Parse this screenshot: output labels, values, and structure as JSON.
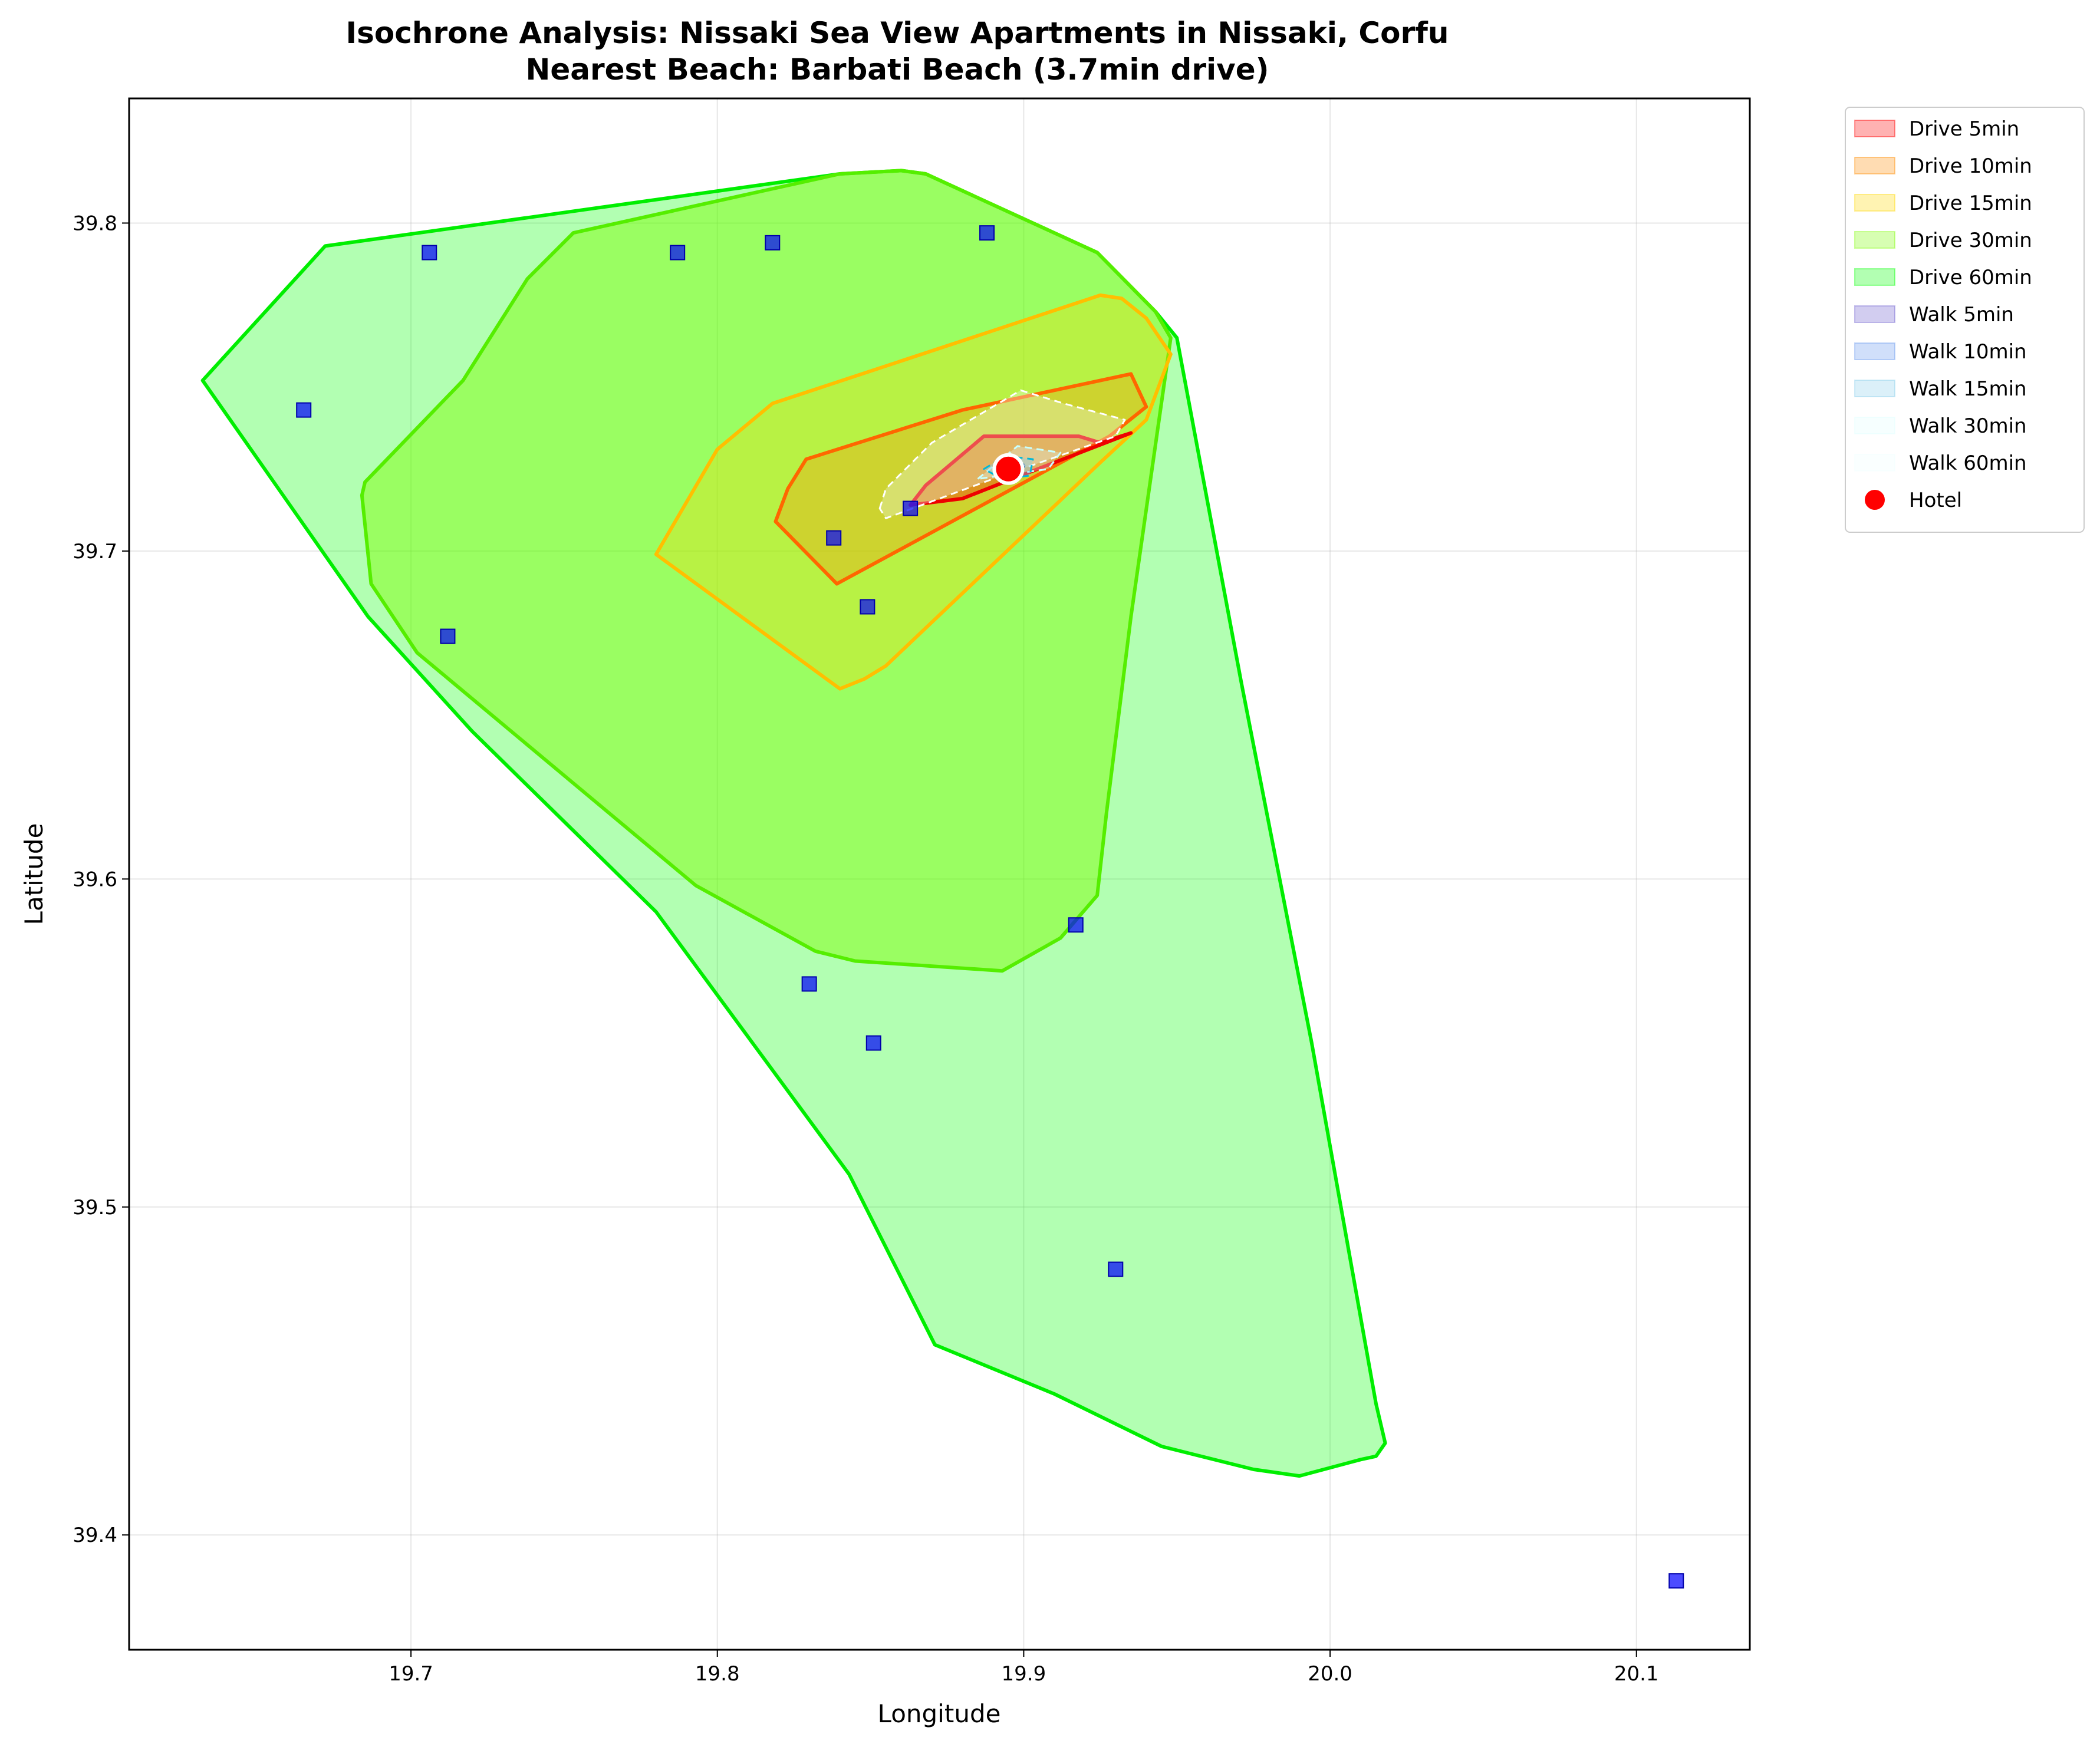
{
  "chart_data": {
    "type": "area",
    "title": "Isochrone Analysis: Nissaki Sea View Apartments in Nissaki, Corfu",
    "subtitle": "Nearest Beach: Barbati Beach (3.7min drive)",
    "xlabel": "Longitude",
    "ylabel": "Latitude",
    "xlim": [
      19.608,
      20.137
    ],
    "ylim": [
      39.365,
      39.838
    ],
    "xticks": [
      19.7,
      19.8,
      19.9,
      20.0,
      20.1
    ],
    "xtick_labels": [
      "19.7",
      "19.8",
      "19.9",
      "20.0",
      "20.1"
    ],
    "yticks": [
      39.4,
      39.5,
      39.6,
      39.7,
      39.8
    ],
    "ytick_labels": [
      "39.4",
      "39.5",
      "39.6",
      "39.7",
      "39.8"
    ],
    "grid": true,
    "legend_position": "outside-top-right",
    "drive_isochrones": [
      {
        "name": "Drive 60min",
        "fill": "#00ff00",
        "fill_opacity": 0.3,
        "edge": "#00ee00",
        "points": [
          [
            19.632,
            39.752
          ],
          [
            19.672,
            39.793
          ],
          [
            19.84,
            39.815
          ],
          [
            19.86,
            39.816
          ],
          [
            19.868,
            39.815
          ],
          [
            19.924,
            39.791
          ],
          [
            19.943,
            39.773
          ],
          [
            19.95,
            39.765
          ],
          [
            19.971,
            39.66
          ],
          [
            19.994,
            39.55
          ],
          [
            20.015,
            39.44
          ],
          [
            20.018,
            39.428
          ],
          [
            20.015,
            39.424
          ],
          [
            20.01,
            39.423
          ],
          [
            19.99,
            39.418
          ],
          [
            19.975,
            39.42
          ],
          [
            19.945,
            39.427
          ],
          [
            19.91,
            39.443
          ],
          [
            19.871,
            39.458
          ],
          [
            19.843,
            39.51
          ],
          [
            19.78,
            39.59
          ],
          [
            19.72,
            39.645
          ],
          [
            19.686,
            39.68
          ],
          [
            19.632,
            39.752
          ]
        ]
      },
      {
        "name": "Drive 30min",
        "fill": "#7cfc00",
        "fill_opacity": 0.45,
        "edge": "#55ee00",
        "points": [
          [
            19.753,
            39.797
          ],
          [
            19.738,
            39.783
          ],
          [
            19.717,
            39.752
          ],
          [
            19.685,
            39.721
          ],
          [
            19.684,
            39.717
          ],
          [
            19.687,
            39.69
          ],
          [
            19.702,
            39.669
          ],
          [
            19.793,
            39.598
          ],
          [
            19.832,
            39.578
          ],
          [
            19.845,
            39.575
          ],
          [
            19.893,
            39.572
          ],
          [
            19.912,
            39.582
          ],
          [
            19.924,
            39.595
          ],
          [
            19.927,
            39.62
          ],
          [
            19.935,
            39.68
          ],
          [
            19.948,
            39.765
          ],
          [
            19.943,
            39.773
          ],
          [
            19.924,
            39.791
          ],
          [
            19.868,
            39.815
          ],
          [
            19.86,
            39.816
          ],
          [
            19.84,
            39.815
          ],
          [
            19.753,
            39.797
          ]
        ]
      },
      {
        "name": "Drive 15min",
        "fill": "#ffd700",
        "fill_opacity": 0.3,
        "edge": "#ffbf00",
        "points": [
          [
            19.78,
            39.699
          ],
          [
            19.8,
            39.731
          ],
          [
            19.818,
            39.745
          ],
          [
            19.925,
            39.778
          ],
          [
            19.932,
            39.777
          ],
          [
            19.94,
            39.771
          ],
          [
            19.948,
            39.76
          ],
          [
            19.94,
            39.74
          ],
          [
            19.925,
            39.727
          ],
          [
            19.855,
            39.665
          ],
          [
            19.848,
            39.661
          ],
          [
            19.84,
            39.658
          ],
          [
            19.78,
            39.699
          ]
        ]
      },
      {
        "name": "Drive 10min",
        "fill": "#ff8c00",
        "fill_opacity": 0.3,
        "edge": "#ff6600",
        "points": [
          [
            19.819,
            39.709
          ],
          [
            19.823,
            39.719
          ],
          [
            19.829,
            39.728
          ],
          [
            19.88,
            39.743
          ],
          [
            19.935,
            39.754
          ],
          [
            19.94,
            39.744
          ],
          [
            19.928,
            39.735
          ],
          [
            19.839,
            39.69
          ],
          [
            19.819,
            39.709
          ]
        ]
      },
      {
        "name": "Drive 5min",
        "fill": "#ff0000",
        "fill_opacity": 0.3,
        "edge": "#ee0000",
        "points": [
          [
            19.863,
            39.714
          ],
          [
            19.868,
            39.72
          ],
          [
            19.887,
            39.735
          ],
          [
            19.918,
            39.735
          ],
          [
            19.925,
            39.733
          ],
          [
            19.935,
            39.736
          ],
          [
            19.899,
            39.723
          ],
          [
            19.88,
            39.716
          ],
          [
            19.863,
            39.714
          ]
        ]
      }
    ],
    "walk_isochrones": [
      {
        "name": "Walk 60min",
        "fill": "#f0ffff",
        "fill_opacity": 0.3,
        "edge": "#ffffff",
        "points": [
          [
            19.853,
            39.713
          ],
          [
            19.855,
            39.719
          ],
          [
            19.87,
            39.733
          ],
          [
            19.899,
            39.749
          ],
          [
            19.913,
            39.745
          ],
          [
            19.933,
            39.74
          ],
          [
            19.93,
            39.735
          ],
          [
            19.89,
            39.722
          ],
          [
            19.855,
            39.71
          ],
          [
            19.853,
            39.713
          ]
        ]
      },
      {
        "name": "Walk 30min",
        "fill": "#e0ffff",
        "fill_opacity": 0.3,
        "edge": "#c8ffff",
        "points": [
          [
            19.885,
            39.722
          ],
          [
            19.898,
            39.732
          ],
          [
            19.912,
            39.73
          ],
          [
            19.908,
            39.725
          ],
          [
            19.885,
            39.722
          ]
        ]
      },
      {
        "name": "Walk 15min",
        "fill": "#87ceeb",
        "fill_opacity": 0.4,
        "edge": "#00b7d8",
        "points": [
          [
            19.887,
            39.725
          ],
          [
            19.894,
            39.729
          ],
          [
            19.903,
            39.728
          ],
          [
            19.902,
            39.723
          ],
          [
            19.893,
            39.722
          ],
          [
            19.887,
            39.725
          ]
        ]
      },
      {
        "name": "Walk 10min",
        "fill": "#6495ed",
        "fill_opacity": 0.3,
        "edge": "#4682b4",
        "points": [
          [
            19.891,
            39.726
          ],
          [
            19.896,
            39.728
          ],
          [
            19.901,
            39.726
          ],
          [
            19.896,
            39.724
          ],
          [
            19.891,
            39.726
          ]
        ]
      },
      {
        "name": "Walk 5min",
        "fill": "#6a5acd",
        "fill_opacity": 0.3,
        "edge": "#483d8b",
        "points": [
          [
            19.894,
            39.726
          ],
          [
            19.897,
            39.727
          ],
          [
            19.899,
            39.725
          ],
          [
            19.896,
            39.724
          ],
          [
            19.894,
            39.726
          ]
        ]
      }
    ],
    "pois": {
      "color": "#0000ff",
      "points": [
        [
          19.665,
          39.743
        ],
        [
          19.706,
          39.791
        ],
        [
          19.787,
          39.791
        ],
        [
          19.818,
          39.794
        ],
        [
          19.888,
          39.797
        ],
        [
          19.712,
          39.674
        ],
        [
          19.838,
          39.704
        ],
        [
          19.849,
          39.683
        ],
        [
          19.863,
          39.713
        ],
        [
          19.917,
          39.586
        ],
        [
          19.83,
          39.568
        ],
        [
          19.851,
          39.55
        ],
        [
          19.93,
          39.481
        ],
        [
          20.113,
          39.386
        ]
      ]
    },
    "hotel": {
      "name": "Hotel",
      "lon": 19.895,
      "lat": 39.725,
      "color": "#ff0000"
    },
    "legend": [
      {
        "label": "Drive 5min",
        "color": "#ff0000",
        "kind": "patch"
      },
      {
        "label": "Drive 10min",
        "color": "#ff8c00",
        "kind": "patch"
      },
      {
        "label": "Drive 15min",
        "color": "#ffd700",
        "kind": "patch"
      },
      {
        "label": "Drive 30min",
        "color": "#7cfc00",
        "kind": "patch"
      },
      {
        "label": "Drive 60min",
        "color": "#00ff00",
        "kind": "patch"
      },
      {
        "label": "Walk 5min",
        "color": "#6a5acd",
        "kind": "patch"
      },
      {
        "label": "Walk 10min",
        "color": "#6495ed",
        "kind": "patch"
      },
      {
        "label": "Walk 15min",
        "color": "#87ceeb",
        "kind": "patch"
      },
      {
        "label": "Walk 30min",
        "color": "#e0ffff",
        "kind": "patch"
      },
      {
        "label": "Walk 60min",
        "color": "#f0ffff",
        "kind": "patch"
      },
      {
        "label": "Hotel",
        "color": "#ff0000",
        "kind": "marker"
      }
    ]
  }
}
